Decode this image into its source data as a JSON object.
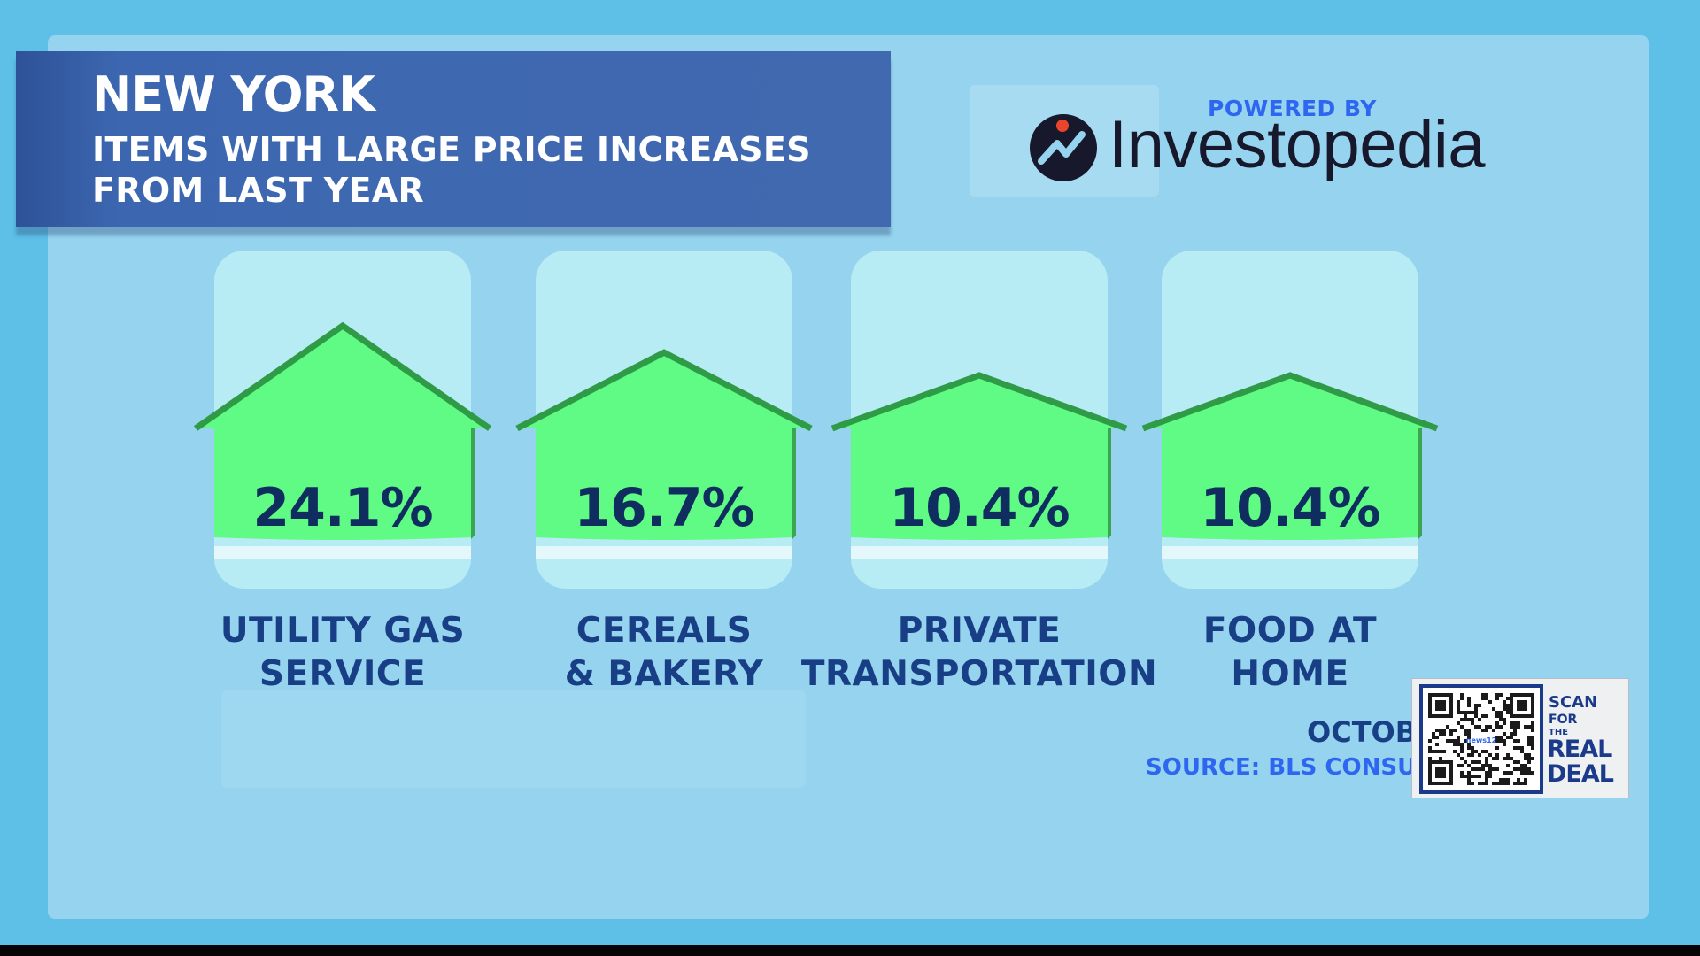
{
  "header": {
    "title": "NEW YORK",
    "subtitle_lines": [
      "ITEMS WITH LARGE PRICE INCREASES",
      "FROM LAST YEAR"
    ]
  },
  "sponsor": {
    "powered_by": "POWERED BY",
    "brand": "Investopedia",
    "brand_icon": "investopedia-logo-icon"
  },
  "chart_data": {
    "type": "bar",
    "title": "ITEMS WITH LARGE PRICE INCREASES FROM LAST YEAR",
    "categories": [
      "UTILITY GAS SERVICE",
      "CEREALS & BAKERY",
      "PRIVATE TRANSPORTATION",
      "FOOD AT HOME"
    ],
    "category_lines": [
      [
        "UTILITY GAS",
        "SERVICE"
      ],
      [
        "CEREALS",
        "& BAKERY"
      ],
      [
        "PRIVATE",
        "TRANSPORTATION"
      ],
      [
        "FOOD AT",
        "HOME"
      ]
    ],
    "values": [
      24.1,
      16.7,
      10.4,
      10.4
    ],
    "value_labels": [
      "24.1%",
      "16.7%",
      "10.4%",
      "10.4%"
    ],
    "unit": "%",
    "mark_shape": "house",
    "colors": {
      "house_fill": "#5ffb84",
      "house_roof": "#2f9b47",
      "house_shadow": "#3ca552",
      "value_text": "#0f2d5e",
      "label_text": "#183e85"
    }
  },
  "footer": {
    "date_text": "OCTOB",
    "source_text": "SOURCE: BLS CONSU"
  },
  "qr_badge": {
    "scan": "SCAN",
    "for": "FOR",
    "the": "THE",
    "real": "REAL",
    "deal": "DEAL",
    "center_text": "news12"
  },
  "colors": {
    "background": "#5ec0e6",
    "panel": "#95d3ee",
    "title_box": "#4169b0",
    "powered_by": "#2f66f0"
  }
}
